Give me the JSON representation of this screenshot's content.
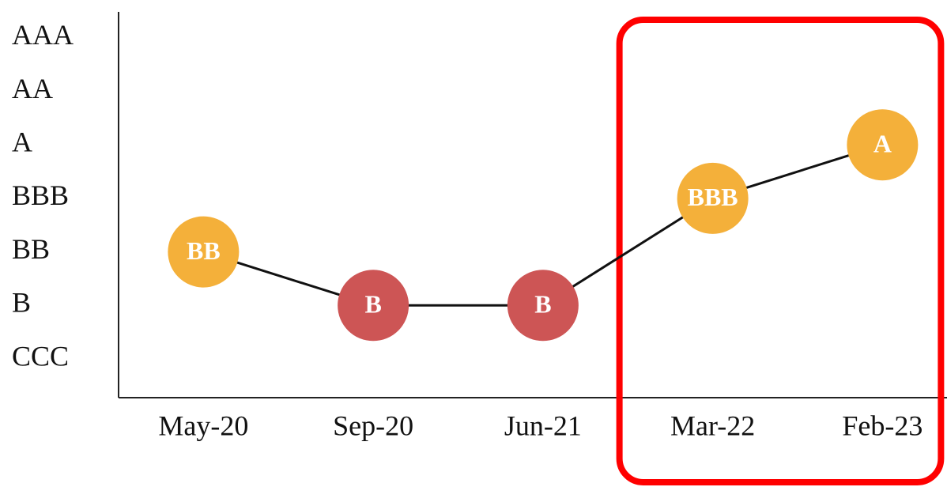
{
  "chart_data": {
    "type": "line",
    "categories": [
      "May-20",
      "Sep-20",
      "Jun-21",
      "Mar-22",
      "Feb-23"
    ],
    "y_categories": [
      "CCC",
      "B",
      "BB",
      "BBB",
      "A",
      "AA",
      "AAA"
    ],
    "values": [
      "BB",
      "B",
      "B",
      "BBB",
      "A"
    ],
    "point_colors": [
      "#f4b03a",
      "#cd5555",
      "#cd5555",
      "#f4b03a",
      "#f4b03a"
    ],
    "line_color": "#111111",
    "highlight_categories": [
      "Mar-22",
      "Feb-23"
    ],
    "highlight_color": "#ff0000"
  }
}
